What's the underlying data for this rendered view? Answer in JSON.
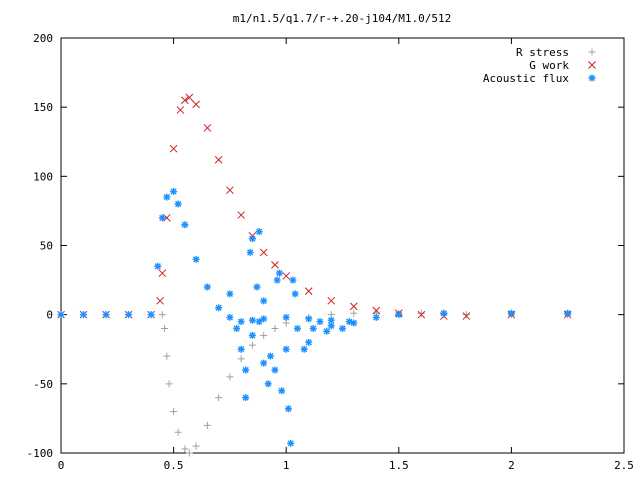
{
  "chart_data": {
    "type": "scatter",
    "title": "m1/n1.5/q1.7/r-+.20-j104/M1.0/512",
    "xlabel": "",
    "ylabel": "",
    "xlim": [
      0,
      2.5
    ],
    "ylim": [
      -100,
      200
    ],
    "x_ticks": [
      "0",
      "0.5",
      "1",
      "1.5",
      "2",
      "2.5"
    ],
    "y_ticks": [
      "200",
      "150",
      "100",
      "50",
      "0",
      "-50",
      "-100"
    ],
    "grid": false,
    "legend_position": "top-right",
    "series": [
      {
        "name": "R stress",
        "marker": "+",
        "color": "#a0a0a0",
        "points": [
          [
            0.0,
            0
          ],
          [
            0.1,
            0
          ],
          [
            0.2,
            0
          ],
          [
            0.3,
            0
          ],
          [
            0.4,
            0
          ],
          [
            0.45,
            0
          ],
          [
            0.46,
            -10
          ],
          [
            0.47,
            -30
          ],
          [
            0.48,
            -50
          ],
          [
            0.5,
            -70
          ],
          [
            0.52,
            -85
          ],
          [
            0.55,
            -97
          ],
          [
            0.57,
            -100
          ],
          [
            0.6,
            -95
          ],
          [
            0.65,
            -80
          ],
          [
            0.7,
            -60
          ],
          [
            0.75,
            -45
          ],
          [
            0.8,
            -32
          ],
          [
            0.85,
            -22
          ],
          [
            0.9,
            -15
          ],
          [
            0.95,
            -10
          ],
          [
            1.0,
            -6
          ],
          [
            1.1,
            -2
          ],
          [
            1.2,
            0
          ],
          [
            1.3,
            1
          ],
          [
            1.4,
            1
          ],
          [
            1.5,
            1
          ],
          [
            1.6,
            1
          ],
          [
            1.7,
            0
          ],
          [
            1.8,
            0
          ],
          [
            2.0,
            0
          ],
          [
            2.25,
            0
          ]
        ]
      },
      {
        "name": "G work",
        "marker": "x",
        "color": "#d02020",
        "points": [
          [
            0.0,
            0
          ],
          [
            0.1,
            0
          ],
          [
            0.2,
            0
          ],
          [
            0.3,
            0
          ],
          [
            0.4,
            0
          ],
          [
            0.44,
            10
          ],
          [
            0.45,
            30
          ],
          [
            0.47,
            70
          ],
          [
            0.5,
            120
          ],
          [
            0.53,
            148
          ],
          [
            0.55,
            155
          ],
          [
            0.57,
            157
          ],
          [
            0.6,
            152
          ],
          [
            0.65,
            135
          ],
          [
            0.7,
            112
          ],
          [
            0.75,
            90
          ],
          [
            0.8,
            72
          ],
          [
            0.85,
            57
          ],
          [
            0.9,
            45
          ],
          [
            0.95,
            36
          ],
          [
            1.0,
            28
          ],
          [
            1.1,
            17
          ],
          [
            1.2,
            10
          ],
          [
            1.3,
            6
          ],
          [
            1.4,
            3
          ],
          [
            1.5,
            1
          ],
          [
            1.6,
            0
          ],
          [
            1.7,
            -1
          ],
          [
            1.8,
            -1
          ],
          [
            2.0,
            0
          ],
          [
            2.25,
            0
          ]
        ]
      },
      {
        "name": "Acoustic flux",
        "marker": "*",
        "color": "#1e90ff",
        "points": [
          [
            0.0,
            0
          ],
          [
            0.1,
            0
          ],
          [
            0.2,
            0
          ],
          [
            0.3,
            0
          ],
          [
            0.4,
            0
          ],
          [
            0.43,
            35
          ],
          [
            0.45,
            70
          ],
          [
            0.47,
            85
          ],
          [
            0.5,
            89
          ],
          [
            0.52,
            80
          ],
          [
            0.55,
            65
          ],
          [
            0.6,
            40
          ],
          [
            0.65,
            20
          ],
          [
            0.7,
            5
          ],
          [
            0.75,
            -2
          ],
          [
            0.8,
            -5
          ],
          [
            0.85,
            -4
          ],
          [
            0.9,
            -3
          ],
          [
            1.0,
            -2
          ],
          [
            1.1,
            -3
          ],
          [
            1.2,
            -4
          ],
          [
            1.3,
            -6
          ],
          [
            1.4,
            -2
          ],
          [
            1.5,
            0
          ],
          [
            1.7,
            1
          ],
          [
            2.0,
            1
          ],
          [
            2.25,
            1
          ],
          [
            0.75,
            15
          ],
          [
            0.78,
            -10
          ],
          [
            0.8,
            -25
          ],
          [
            0.82,
            -40
          ],
          [
            0.82,
            -60
          ],
          [
            0.84,
            45
          ],
          [
            0.85,
            -15
          ],
          [
            0.87,
            20
          ],
          [
            0.88,
            -5
          ],
          [
            0.9,
            10
          ],
          [
            0.9,
            -35
          ],
          [
            0.92,
            -50
          ],
          [
            0.93,
            -30
          ],
          [
            0.95,
            -40
          ],
          [
            0.97,
            30
          ],
          [
            0.98,
            -55
          ],
          [
            1.0,
            -25
          ],
          [
            1.01,
            -68
          ],
          [
            1.02,
            -93
          ],
          [
            1.03,
            25
          ],
          [
            1.04,
            15
          ],
          [
            1.05,
            -10
          ],
          [
            1.08,
            -25
          ],
          [
            1.1,
            -20
          ],
          [
            0.85,
            55
          ],
          [
            0.88,
            60
          ],
          [
            0.96,
            25
          ],
          [
            1.12,
            -10
          ],
          [
            1.15,
            -5
          ],
          [
            1.18,
            -12
          ],
          [
            1.2,
            -8
          ],
          [
            1.25,
            -10
          ],
          [
            1.28,
            -5
          ]
        ]
      }
    ]
  }
}
